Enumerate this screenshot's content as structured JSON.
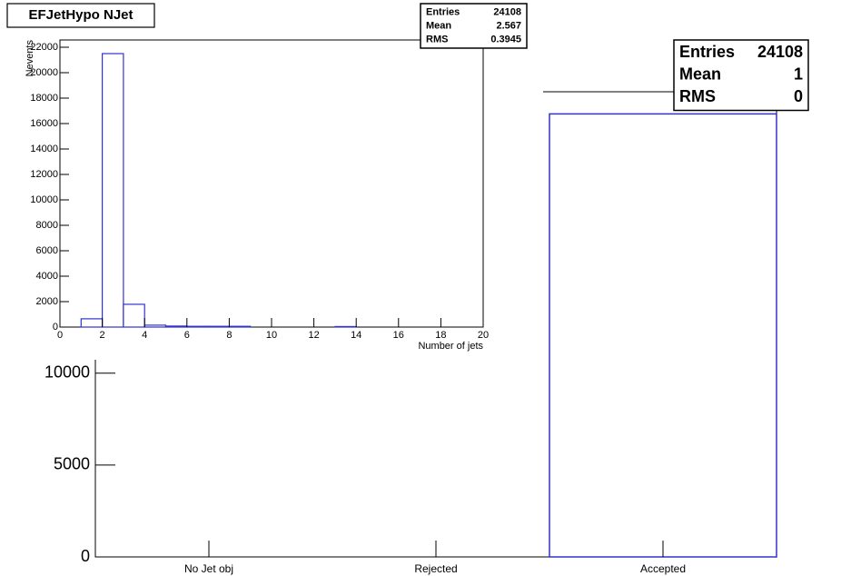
{
  "chart_data": [
    {
      "type": "bar",
      "categories": [
        "No Jet obj",
        "Rejected",
        "Accepted"
      ],
      "values": [
        0,
        0,
        24108
      ],
      "color": "#3333cc",
      "ylim": [
        0,
        25313
      ],
      "yticks": [
        0,
        5000,
        10000
      ],
      "stats": [
        {
          "label": "Entries",
          "value": 24108
        },
        {
          "label": "Mean",
          "value": 1
        },
        {
          "label": "RMS",
          "value": 0
        }
      ]
    },
    {
      "type": "histogram",
      "title": "EFJetHypo NJet",
      "x_label": "Number of jets",
      "y_label": "Nevents",
      "bins": [
        0,
        1,
        2,
        3,
        4,
        5,
        6,
        7,
        8,
        9,
        10,
        11,
        12,
        13,
        14,
        15,
        16,
        17,
        18,
        19,
        20
      ],
      "values": [
        0,
        650,
        21500,
        1790,
        150,
        80,
        60,
        60,
        60,
        0,
        0,
        0,
        0,
        40,
        0,
        0,
        0,
        0,
        0,
        0
      ],
      "color": "#3333cc",
      "xlim": [
        0,
        20
      ],
      "xticks": [
        0,
        2,
        4,
        6,
        8,
        10,
        12,
        14,
        16,
        18,
        20
      ],
      "ylim": [
        0,
        22571
      ],
      "yticks": [
        0,
        2000,
        4000,
        6000,
        8000,
        10000,
        12000,
        14000,
        16000,
        18000,
        20000,
        22000
      ],
      "stats": [
        {
          "label": "Entries",
          "value": 24108
        },
        {
          "label": "Mean",
          "value": 2.567
        },
        {
          "label": "RMS",
          "value": 0.3945
        }
      ]
    }
  ]
}
